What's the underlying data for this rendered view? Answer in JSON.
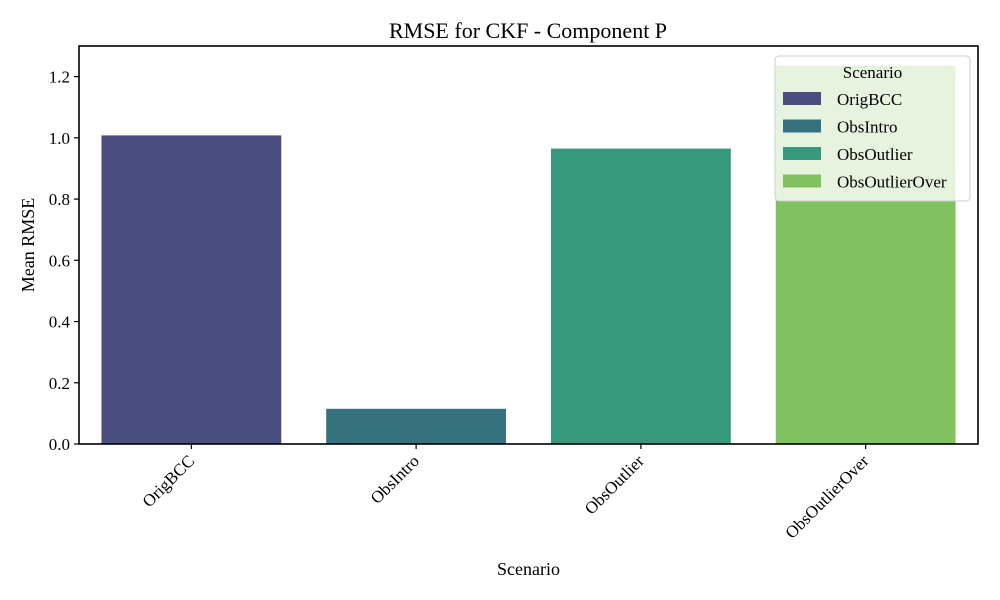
{
  "chart_data": {
    "type": "bar",
    "title": "RMSE for CKF - Component P",
    "xlabel": "Scenario",
    "ylabel": "Mean RMSE",
    "ylim": [
      0,
      1.3
    ],
    "yticks": [
      0.0,
      0.2,
      0.4,
      0.6,
      0.8,
      1.0,
      1.2
    ],
    "ytick_labels": [
      "0.0",
      "0.2",
      "0.4",
      "0.6",
      "0.8",
      "1.0",
      "1.2"
    ],
    "categories": [
      "OrigBCC",
      "ObsIntro",
      "ObsOutlier",
      "ObsOutlierOver"
    ],
    "values": [
      1.008,
      0.115,
      0.965,
      1.235
    ],
    "colors": [
      "#4a4d7f",
      "#35717e",
      "#36997c",
      "#80c160"
    ],
    "grid": false,
    "legend": {
      "title": "Scenario",
      "placement": "top-right",
      "entries": [
        "OrigBCC",
        "ObsIntro",
        "ObsOutlier",
        "ObsOutlierOver"
      ]
    }
  }
}
